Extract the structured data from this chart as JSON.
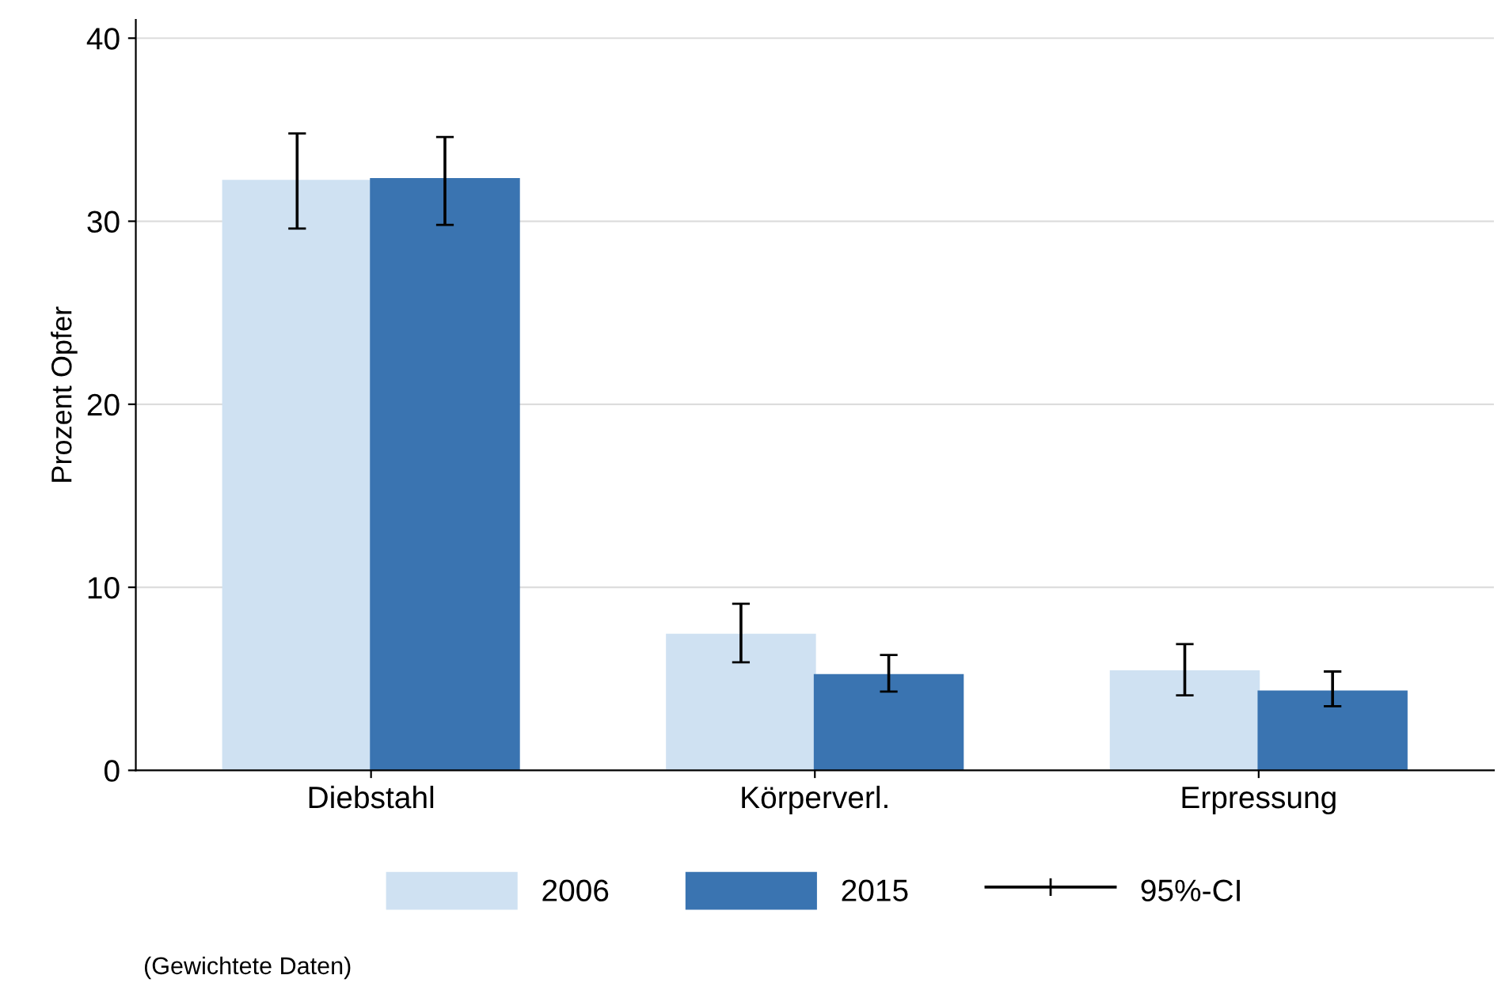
{
  "chart_data": {
    "type": "bar",
    "ylabel": "Prozent Opfer",
    "categories": [
      "Diebstahl",
      "Körperverl.",
      "Erpressung"
    ],
    "series": [
      {
        "name": "2006",
        "color": "#cfe1f2",
        "values": [
          32.2,
          7.4,
          5.4
        ],
        "errors": [
          [
            29.6,
            34.8
          ],
          [
            5.9,
            9.1
          ],
          [
            4.1,
            6.9
          ]
        ]
      },
      {
        "name": "2015",
        "color": "#3a74b1",
        "values": [
          32.3,
          5.2,
          4.3
        ],
        "errors": [
          [
            29.8,
            34.6
          ],
          [
            4.3,
            6.3
          ],
          [
            3.5,
            5.4
          ]
        ]
      }
    ],
    "ylim": [
      0,
      41
    ],
    "yticks": [
      0,
      10,
      20,
      30,
      40
    ],
    "grid": "y",
    "legend": "bottom",
    "annotations": [
      "(Gewichtete Daten)",
      "95%-CI"
    ]
  }
}
